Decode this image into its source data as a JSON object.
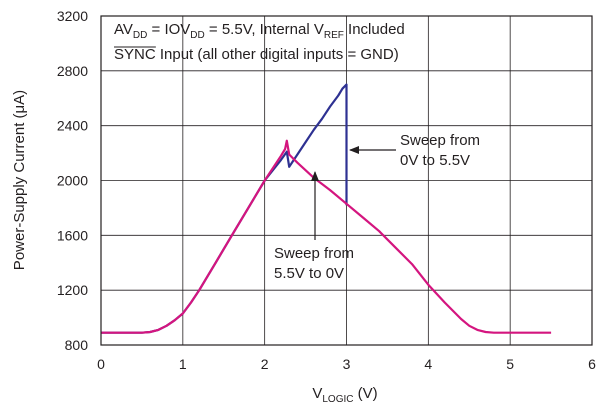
{
  "chart_data": {
    "type": "line",
    "xlabel": {
      "main": "V",
      "sub": "LOGIC",
      "unit": " (V)"
    },
    "ylabel": "Power-Supply Current (μA)",
    "xlim": [
      0,
      6
    ],
    "ylim": [
      800,
      3200
    ],
    "x_ticks": [
      "0",
      "1",
      "2",
      "3",
      "4",
      "5",
      "6"
    ],
    "y_ticks": [
      "800",
      "1200",
      "1600",
      "2000",
      "2400",
      "2800",
      "3200"
    ],
    "x_tick_values": [
      0,
      1,
      2,
      3,
      4,
      5,
      6
    ],
    "y_tick_values": [
      800,
      1200,
      1600,
      2000,
      2400,
      2800,
      3200
    ],
    "grid": true,
    "conditions": {
      "line1": [
        "AV",
        "DD",
        " = IOV",
        "DD",
        " = 5.5V, Internal V",
        "REF",
        " Included"
      ],
      "line2_overline": "SYNC",
      "line2_rest": " Input (all other digital inputs = GND)"
    },
    "annotations": [
      {
        "lines": [
          "Sweep from",
          "0V to 5.5V"
        ],
        "points_to": [
          3.0,
          2200
        ]
      },
      {
        "lines": [
          "Sweep from",
          "5.5V to 0V"
        ],
        "points_to": [
          2.65,
          2060
        ]
      }
    ],
    "series": [
      {
        "color": "#2e3192",
        "x": [
          0.0,
          0.5,
          0.6,
          0.7,
          0.8,
          0.9,
          1.0,
          1.1,
          1.2,
          1.4,
          1.6,
          1.8,
          2.0,
          2.2,
          2.27,
          2.3,
          2.4,
          2.5,
          2.6,
          2.7,
          2.8,
          2.9,
          2.95,
          3.0,
          3.0,
          3.0
        ],
        "y": [
          890,
          890,
          895,
          910,
          940,
          980,
          1030,
          1110,
          1200,
          1400,
          1600,
          1800,
          2000,
          2150,
          2210,
          2100,
          2190,
          2280,
          2370,
          2450,
          2540,
          2620,
          2670,
          2700,
          2200,
          1820
        ]
      },
      {
        "color": "#d4157f",
        "x": [
          5.5,
          4.8,
          4.7,
          4.6,
          4.5,
          4.4,
          4.2,
          4.0,
          3.8,
          3.6,
          3.4,
          3.2,
          3.0,
          2.8,
          2.6,
          2.4,
          2.35,
          2.3,
          2.27,
          2.25,
          2.2,
          2.0,
          1.8,
          1.6,
          1.4,
          1.2,
          1.1,
          1.0,
          0.9,
          0.8,
          0.7,
          0.6,
          0.5,
          0.0
        ],
        "y": [
          890,
          890,
          895,
          910,
          940,
          990,
          1110,
          1240,
          1390,
          1510,
          1630,
          1730,
          1830,
          1930,
          2020,
          2130,
          2160,
          2190,
          2290,
          2230,
          2180,
          2000,
          1800,
          1600,
          1400,
          1200,
          1110,
          1030,
          980,
          940,
          910,
          895,
          890,
          890
        ]
      }
    ]
  }
}
